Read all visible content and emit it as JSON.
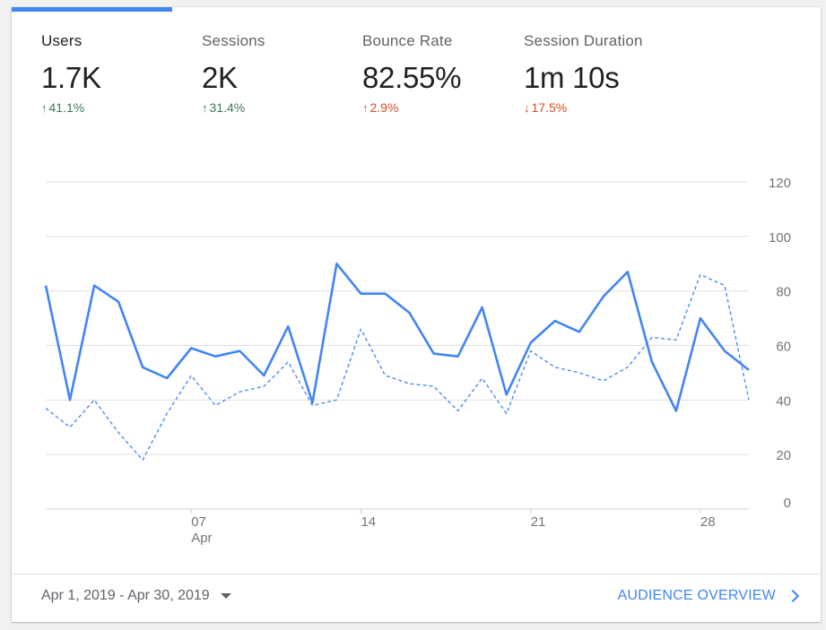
{
  "metrics": [
    {
      "label": "Users",
      "value": "1.7K",
      "change": "41.1%",
      "direction": "up",
      "tone": "good"
    },
    {
      "label": "Sessions",
      "value": "2K",
      "change": "31.4%",
      "direction": "up",
      "tone": "good"
    },
    {
      "label": "Bounce Rate",
      "value": "82.55%",
      "change": "2.9%",
      "direction": "up",
      "tone": "bad"
    },
    {
      "label": "Session Duration",
      "value": "1m 10s",
      "change": "17.5%",
      "direction": "down",
      "tone": "bad"
    }
  ],
  "colors": {
    "accent": "#4285f4",
    "good": "#3c7a5a",
    "bad": "#d2501f",
    "grid": "#e0e0e0"
  },
  "footer": {
    "date_range": "Apr 1, 2019 - Apr 30, 2019",
    "link_label": "AUDIENCE OVERVIEW"
  },
  "chart_data": {
    "type": "line",
    "x": [
      "2019-04-01",
      "2019-04-02",
      "2019-04-03",
      "2019-04-04",
      "2019-04-05",
      "2019-04-06",
      "2019-04-07",
      "2019-04-08",
      "2019-04-09",
      "2019-04-10",
      "2019-04-11",
      "2019-04-12",
      "2019-04-13",
      "2019-04-14",
      "2019-04-15",
      "2019-04-16",
      "2019-04-17",
      "2019-04-18",
      "2019-04-19",
      "2019-04-20",
      "2019-04-21",
      "2019-04-22",
      "2019-04-23",
      "2019-04-24",
      "2019-04-25",
      "2019-04-26",
      "2019-04-27",
      "2019-04-28",
      "2019-04-29",
      "2019-04-30"
    ],
    "series": [
      {
        "style": "solid",
        "values": [
          82,
          40,
          82,
          76,
          52,
          48,
          59,
          56,
          58,
          49,
          67,
          39,
          90,
          79,
          79,
          72,
          57,
          56,
          74,
          42,
          61,
          69,
          65,
          78,
          87,
          54,
          36,
          70,
          58,
          51
        ]
      },
      {
        "style": "dashed",
        "values": [
          37,
          30,
          40,
          28,
          18,
          35,
          49,
          38,
          43,
          45,
          54,
          38,
          40,
          66,
          49,
          46,
          45,
          36,
          48,
          35,
          58,
          52,
          50,
          47,
          52,
          63,
          62,
          86,
          82,
          40
        ]
      }
    ],
    "y_ticks": [
      0,
      20,
      40,
      60,
      80,
      100,
      120
    ],
    "x_ticks": [
      {
        "day": 7,
        "label": "07",
        "sublabel": "Apr"
      },
      {
        "day": 14,
        "label": "14"
      },
      {
        "day": 21,
        "label": "21"
      },
      {
        "day": 28,
        "label": "28"
      }
    ],
    "ylim": [
      0,
      120
    ],
    "grid": true,
    "axis_position": "right"
  }
}
